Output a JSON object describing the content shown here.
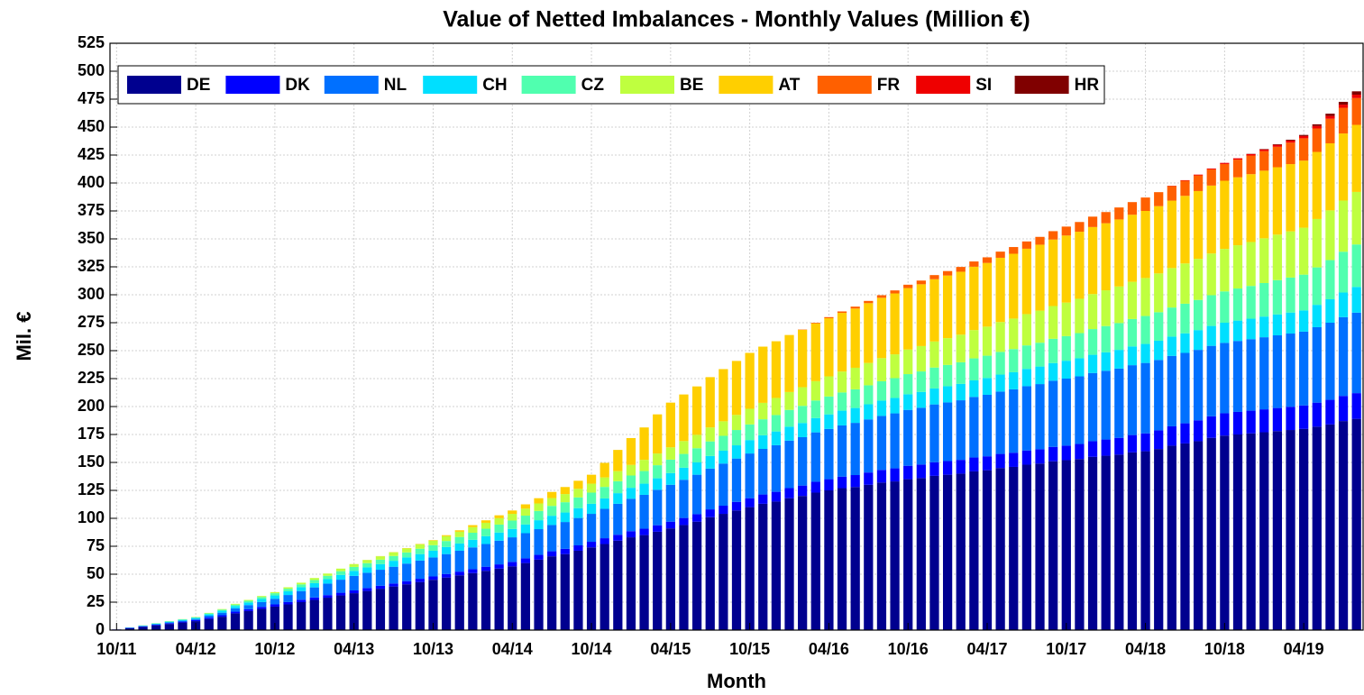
{
  "chart_data": {
    "type": "stacked_bar",
    "title": "Value of Netted Imbalances - Monthly Values  (Million €)",
    "x_label": "Month",
    "y_label": "Mil. €",
    "ylim": [
      0,
      525
    ],
    "yticks": [
      0,
      25,
      50,
      75,
      100,
      125,
      150,
      175,
      200,
      225,
      250,
      275,
      300,
      325,
      350,
      375,
      400,
      425,
      450,
      475,
      500,
      525
    ],
    "grid": true,
    "legend": "upper left",
    "categories": [
      "10/11",
      null,
      null,
      null,
      null,
      null,
      "04/12",
      null,
      null,
      null,
      null,
      null,
      "10/12",
      null,
      null,
      null,
      null,
      null,
      "04/13",
      null,
      null,
      null,
      null,
      null,
      "10/13",
      null,
      null,
      null,
      null,
      null,
      "04/14",
      null,
      null,
      null,
      null,
      null,
      "10/14",
      null,
      null,
      null,
      null,
      null,
      "04/15",
      null,
      null,
      null,
      null,
      null,
      "10/15",
      null,
      null,
      null,
      null,
      null,
      "04/16",
      null,
      null,
      null,
      null,
      null,
      "10/16",
      null,
      null,
      null,
      null,
      null,
      "04/17",
      null,
      null,
      null,
      null,
      null,
      "10/17",
      null,
      null,
      null,
      null,
      null,
      "04/18",
      null,
      null,
      null,
      null,
      null,
      "10/18",
      null,
      null,
      null,
      null,
      null,
      "04/19",
      null,
      null,
      null,
      null
    ],
    "series": [
      {
        "name": "DE",
        "color": "#00008f",
        "values": [
          0.5,
          1.8,
          3,
          4.3,
          5.5,
          6.8,
          8,
          10,
          12,
          15,
          17,
          19,
          21,
          23,
          25,
          27,
          29,
          31,
          33,
          35,
          37,
          39,
          41,
          43,
          45,
          47,
          49,
          51,
          53,
          55,
          57,
          60,
          63,
          66,
          68,
          71,
          74,
          77,
          80,
          83,
          85,
          88,
          91,
          94,
          97,
          101,
          104,
          107,
          110,
          113,
          115,
          118,
          120,
          123,
          125,
          127,
          128,
          130,
          132,
          133,
          135,
          136,
          138,
          139,
          140,
          142,
          143,
          145,
          146,
          148,
          149,
          151,
          152,
          153,
          155,
          156,
          157,
          159,
          160,
          162,
          165,
          167,
          169,
          172,
          174,
          175,
          176,
          177,
          178,
          179,
          180,
          182,
          184,
          187,
          189
        ]
      },
      {
        "name": "DK",
        "color": "#0000ff",
        "values": [
          0.1,
          0.2,
          0.4,
          0.5,
          0.7,
          0.8,
          1,
          1.2,
          1.3,
          1.5,
          1.7,
          1.8,
          2,
          2.1,
          2.2,
          2.2,
          2.3,
          2.4,
          2.5,
          2.6,
          2.7,
          2.7,
          2.8,
          2.9,
          3,
          3.2,
          3.3,
          3.5,
          3.7,
          3.8,
          4,
          4.2,
          4.3,
          4.5,
          4.7,
          4.8,
          5,
          5.2,
          5.3,
          5.5,
          5.7,
          5.8,
          6,
          6.3,
          6.7,
          7,
          7.3,
          7.7,
          8,
          8.3,
          8.7,
          9,
          9.3,
          9.7,
          10,
          10.3,
          10.7,
          11,
          11.3,
          11.7,
          12,
          12.1,
          12.2,
          12.2,
          12.3,
          12.4,
          12.5,
          12.6,
          12.7,
          12.7,
          12.8,
          12.9,
          13,
          13.5,
          14,
          14.5,
          15,
          15.5,
          16,
          16.7,
          17.3,
          18,
          18.7,
          19.3,
          20,
          20.2,
          20.3,
          20.5,
          20.7,
          20.8,
          21,
          21.5,
          22,
          22.5,
          23
        ]
      },
      {
        "name": "NL",
        "color": "#0070ff",
        "values": [
          0,
          0.2,
          0.3,
          0.5,
          0.7,
          0.8,
          1,
          1.7,
          2.3,
          3,
          3.7,
          4.3,
          5,
          6.3,
          7.7,
          9,
          10.3,
          11.7,
          13,
          13.7,
          14.3,
          15,
          15.7,
          16.3,
          17,
          17.8,
          18.7,
          19.5,
          20.3,
          21.2,
          22,
          22.5,
          23,
          23.5,
          24,
          24.5,
          25,
          26.3,
          27.7,
          29,
          30.3,
          31.7,
          33,
          34.2,
          35.3,
          36.5,
          37.7,
          38.8,
          40,
          40.8,
          41.7,
          42.5,
          43.3,
          44.2,
          45,
          45.8,
          46.7,
          47.5,
          48.3,
          49.2,
          50,
          50.8,
          51.7,
          52.5,
          53.3,
          54.2,
          55,
          55.8,
          56.7,
          57.5,
          58.3,
          59.2,
          60,
          60.5,
          61,
          61.5,
          62,
          62.5,
          63,
          63,
          63,
          63,
          63,
          63,
          63,
          63.5,
          64,
          64.5,
          65,
          65.5,
          66,
          67.5,
          69,
          70.5,
          72
        ]
      },
      {
        "name": "CH",
        "color": "#00dfff",
        "values": [
          0,
          0.2,
          0.3,
          0.5,
          0.7,
          0.8,
          1,
          1.3,
          1.7,
          2,
          2.3,
          2.7,
          3,
          3.3,
          3.5,
          3.8,
          4,
          4.3,
          4.5,
          4.8,
          5,
          5.3,
          5.5,
          5.8,
          6,
          6.3,
          6.5,
          6.8,
          7,
          7.3,
          7.5,
          7.8,
          8,
          8.3,
          8.5,
          8.8,
          9,
          9.3,
          9.5,
          9.8,
          10,
          10.3,
          10.5,
          10.8,
          11,
          11.3,
          11.5,
          11.8,
          12,
          12.2,
          12.3,
          12.5,
          12.7,
          12.8,
          13,
          13.2,
          13.3,
          13.5,
          13.7,
          13.8,
          14,
          14.2,
          14.3,
          14.5,
          14.7,
          14.8,
          15,
          15.2,
          15.3,
          15.5,
          15.7,
          15.8,
          16,
          16.2,
          16.3,
          16.5,
          16.7,
          16.8,
          17,
          17.2,
          17.3,
          17.5,
          17.7,
          17.8,
          18,
          18.2,
          18.3,
          18.5,
          18.7,
          18.8,
          19,
          20,
          21,
          22,
          23
        ]
      },
      {
        "name": "CZ",
        "color": "#50ffaf",
        "values": [
          0,
          0.1,
          0.2,
          0.3,
          0.3,
          0.4,
          0.5,
          0.8,
          1,
          1.3,
          1.5,
          1.8,
          2,
          2.3,
          2.5,
          2.8,
          3,
          3.3,
          3.5,
          3.8,
          4,
          4.3,
          4.5,
          4.8,
          5,
          5.4,
          5.8,
          6.3,
          6.7,
          7.1,
          7.5,
          7.9,
          8.3,
          8.8,
          9.2,
          9.6,
          10,
          10.3,
          10.7,
          11,
          11.3,
          11.7,
          12,
          12.3,
          12.7,
          13,
          13.3,
          13.7,
          14,
          14.3,
          14.7,
          15,
          15.3,
          15.7,
          16,
          16.3,
          16.7,
          17,
          17.3,
          17.7,
          18,
          18.3,
          18.7,
          19,
          19.3,
          19.7,
          20,
          20.3,
          20.7,
          21,
          21.3,
          21.7,
          22,
          22.5,
          23,
          23.5,
          24,
          24.5,
          25,
          25.5,
          26,
          26.5,
          27,
          27.5,
          28,
          28.7,
          29.3,
          30,
          30.7,
          31.3,
          32,
          33.5,
          35,
          36.5,
          38
        ]
      },
      {
        "name": "BE",
        "color": "#bfff3f",
        "values": [
          0,
          0,
          0.1,
          0.1,
          0.2,
          0.2,
          0.3,
          0.4,
          0.5,
          0.7,
          0.8,
          0.9,
          1,
          1.3,
          1.5,
          1.8,
          2,
          2.3,
          2.5,
          2.8,
          3,
          3.3,
          3.5,
          3.8,
          4,
          4.3,
          4.7,
          5,
          5.3,
          5.7,
          6,
          6.3,
          6.7,
          7,
          7.3,
          7.7,
          8,
          8.5,
          9,
          9.5,
          10,
          10.5,
          11,
          11.5,
          12,
          12.5,
          13,
          13.5,
          14,
          14.7,
          15.3,
          16,
          16.7,
          17.3,
          18,
          18.7,
          19.3,
          20,
          20.7,
          21.3,
          22,
          22.7,
          23.3,
          24,
          24.7,
          25.3,
          26,
          26.7,
          27.3,
          28,
          28.7,
          29.3,
          30,
          30.7,
          31.3,
          32,
          32.7,
          33.3,
          34,
          34.7,
          35.3,
          36,
          36.7,
          37.3,
          38,
          38.7,
          39.3,
          40,
          40.7,
          41.3,
          42,
          43.3,
          44.5,
          45.8,
          47
        ]
      },
      {
        "name": "AT",
        "color": "#ffcf00",
        "values": [
          0,
          0,
          0,
          0,
          0,
          0,
          0,
          0,
          0,
          0,
          0,
          0,
          0,
          0,
          0,
          0,
          0,
          0,
          0.1,
          0.1,
          0.2,
          0.2,
          0.3,
          0.4,
          0.5,
          0.9,
          1.3,
          1.8,
          2.2,
          2.6,
          3,
          3.8,
          4.7,
          5.5,
          6.3,
          7.2,
          8,
          13,
          19,
          24,
          29,
          35,
          40,
          41.7,
          43.3,
          45,
          46.7,
          48.3,
          50,
          50.3,
          50.7,
          51,
          51.3,
          51.7,
          52,
          52.5,
          53,
          53.5,
          54,
          54.5,
          55,
          55.3,
          55.7,
          56,
          56.3,
          56.7,
          57,
          57.5,
          58,
          58.5,
          59,
          59.5,
          60,
          60,
          60,
          60,
          60,
          60,
          60,
          60.2,
          60.3,
          60.5,
          60.7,
          60.8,
          61,
          60.8,
          60.7,
          60.5,
          60.3,
          60.2,
          60,
          60,
          60,
          60,
          60
        ]
      },
      {
        "name": "FR",
        "color": "#ff6000",
        "values": [
          0,
          0,
          0,
          0,
          0,
          0,
          0,
          0,
          0,
          0,
          0,
          0,
          0,
          0,
          0,
          0,
          0,
          0,
          0,
          0,
          0,
          0,
          0,
          0,
          0,
          0,
          0,
          0,
          0,
          0,
          0,
          0,
          0,
          0,
          0,
          0,
          0,
          0,
          0,
          0,
          0,
          0,
          0,
          0,
          0,
          0,
          0,
          0,
          0,
          0,
          0,
          0,
          0.3,
          0.6,
          1,
          1.3,
          1.7,
          2,
          2.3,
          2.7,
          3,
          3.3,
          3.7,
          4,
          4.3,
          4.7,
          5,
          5.5,
          6,
          6.5,
          7,
          7.5,
          8,
          8.7,
          9.3,
          10,
          10.7,
          11.3,
          12,
          12.5,
          13,
          13.5,
          14,
          14.5,
          15,
          15.8,
          16.7,
          17.5,
          18.3,
          19.2,
          20,
          21,
          22,
          23,
          24
        ]
      },
      {
        "name": "SI",
        "color": "#ef0000",
        "values": [
          0,
          0,
          0,
          0,
          0,
          0,
          0,
          0,
          0,
          0,
          0,
          0,
          0,
          0,
          0,
          0,
          0,
          0,
          0,
          0,
          0,
          0,
          0,
          0,
          0,
          0,
          0,
          0,
          0,
          0,
          0,
          0,
          0,
          0,
          0,
          0,
          0,
          0,
          0,
          0,
          0,
          0,
          0,
          0,
          0,
          0,
          0,
          0,
          0,
          0,
          0,
          0,
          0,
          0,
          0,
          0,
          0,
          0,
          0,
          0,
          0,
          0,
          0,
          0,
          0,
          0,
          0,
          0,
          0,
          0,
          0,
          0,
          0,
          0,
          0,
          0,
          0,
          0,
          0,
          0,
          0.3,
          0.5,
          0.7,
          0.8,
          1,
          1.2,
          1.3,
          1.5,
          1.7,
          1.8,
          2,
          2.2,
          2.5,
          2.8,
          3
        ]
      },
      {
        "name": "HR",
        "color": "#800000",
        "values": [
          0,
          0,
          0,
          0,
          0,
          0,
          0,
          0,
          0,
          0,
          0,
          0,
          0,
          0,
          0,
          0,
          0,
          0,
          0,
          0,
          0,
          0,
          0,
          0,
          0,
          0,
          0,
          0,
          0,
          0,
          0,
          0,
          0,
          0,
          0,
          0,
          0,
          0,
          0,
          0,
          0,
          0,
          0,
          0,
          0,
          0,
          0,
          0,
          0,
          0,
          0,
          0,
          0,
          0,
          0,
          0,
          0,
          0,
          0,
          0,
          0,
          0,
          0,
          0,
          0,
          0,
          0,
          0,
          0,
          0,
          0,
          0,
          0,
          0,
          0,
          0,
          0,
          0,
          0,
          0,
          0,
          0,
          0,
          0,
          0,
          0,
          0.2,
          0.4,
          0.6,
          0.8,
          1,
          1.5,
          2,
          2.5,
          3
        ]
      }
    ]
  }
}
